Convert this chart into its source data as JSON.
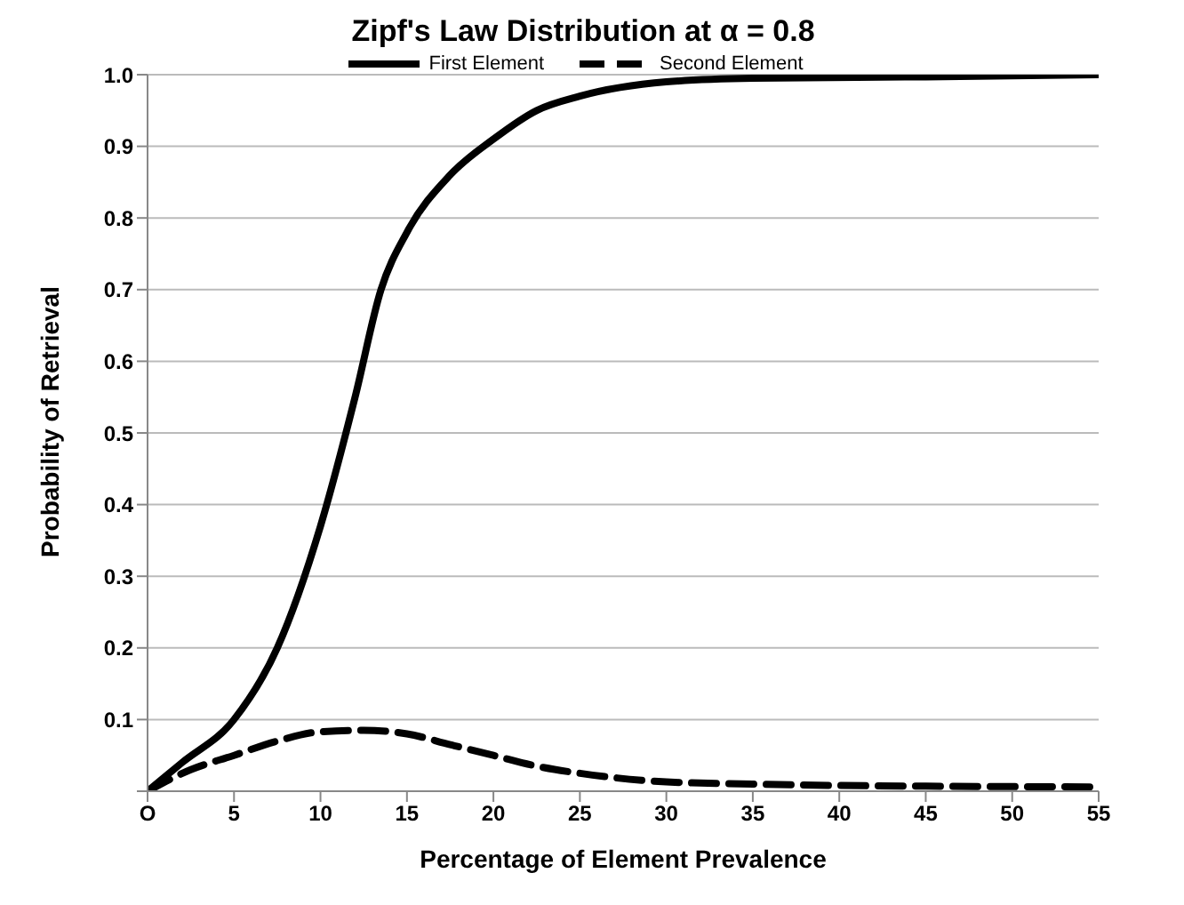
{
  "chart_data": {
    "type": "line",
    "title": "Zipf's Law Distribution  at α = 0.8",
    "xlabel": "Percentage of Element Prevalence",
    "ylabel": "Probability of Retrieval",
    "series": [
      {
        "name": "First Element",
        "color": "#000000",
        "line_style": "solid",
        "x": [
          0,
          2,
          5,
          7.5,
          10,
          12,
          13.5,
          15,
          17.5,
          20,
          22.5,
          25,
          30,
          35,
          45,
          55
        ],
        "values": [
          0,
          0.04,
          0.1,
          0.2,
          0.37,
          0.55,
          0.7,
          0.78,
          0.86,
          0.91,
          0.95,
          0.97,
          0.99,
          0.995,
          0.997,
          1.0
        ]
      },
      {
        "name": "Second Element",
        "color": "#000000",
        "line_style": "dashed",
        "x": [
          0,
          2.5,
          5,
          7.5,
          10,
          12.5,
          15,
          17.5,
          20,
          22.5,
          25,
          30,
          35,
          40,
          45,
          55
        ],
        "values": [
          0,
          0.03,
          0.05,
          0.07,
          0.083,
          0.085,
          0.08,
          0.065,
          0.05,
          0.035,
          0.025,
          0.013,
          0.01,
          0.008,
          0.007,
          0.006
        ]
      }
    ],
    "xlim": [
      0,
      55
    ],
    "xticks": [
      {
        "value": 0,
        "label": "O"
      },
      5,
      10,
      15,
      20,
      25,
      30,
      35,
      40,
      45,
      50,
      55
    ],
    "ylim": [
      0,
      1
    ],
    "yticks": [
      {
        "value": 0,
        "label": null
      },
      0.1,
      0.2,
      0.3,
      0.4,
      0.5,
      0.6,
      0.7,
      0.8,
      0.9,
      {
        "value": 1,
        "label": "1.0"
      }
    ],
    "grid": "y",
    "legend": "top",
    "marker": "none"
  }
}
